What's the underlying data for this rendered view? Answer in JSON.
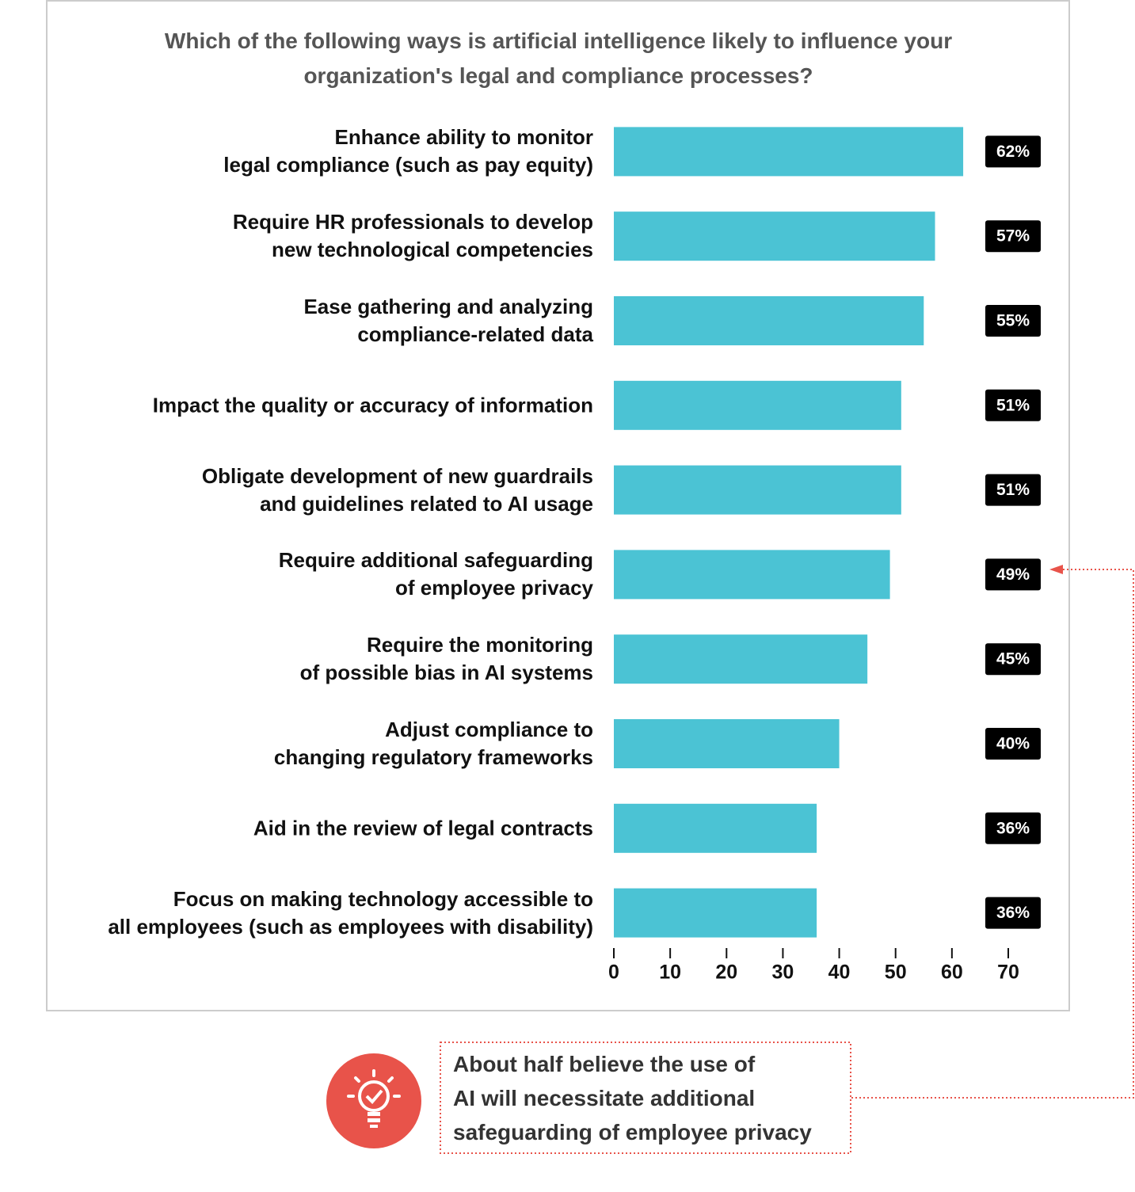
{
  "chart_data": {
    "type": "barh",
    "title": "Which of the following ways is artificial intelligence likely to influence your\norganization's legal and compliance processes?",
    "categories": [
      "Enhance ability to monitor\nlegal compliance (such as pay equity)",
      "Require HR professionals to develop\nnew technological competencies",
      "Ease gathering and analyzing\ncompliance-related data",
      "Impact the quality or accuracy of information",
      "Obligate development of new guardrails\nand guidelines related to AI usage",
      "Require additional safeguarding\nof employee privacy",
      "Require the monitoring\nof possible bias in AI systems",
      "Adjust compliance to\nchanging regulatory frameworks",
      "Aid in the review of legal contracts",
      "Focus on making technology accessible to\nall employees (such as employees with disability)"
    ],
    "values": [
      62,
      57,
      55,
      51,
      51,
      49,
      45,
      40,
      36,
      36
    ],
    "value_labels": [
      "62%",
      "57%",
      "55%",
      "51%",
      "51%",
      "49%",
      "45%",
      "40%",
      "36%",
      "36%"
    ],
    "color": "#4bc3d4",
    "xlim": [
      0,
      70
    ],
    "xticks": [
      0,
      10,
      20,
      30,
      40,
      50,
      60,
      70
    ],
    "annotation": "About half believe the use of\nAI will necessitate additional\nsafeguarding of employee privacy"
  }
}
